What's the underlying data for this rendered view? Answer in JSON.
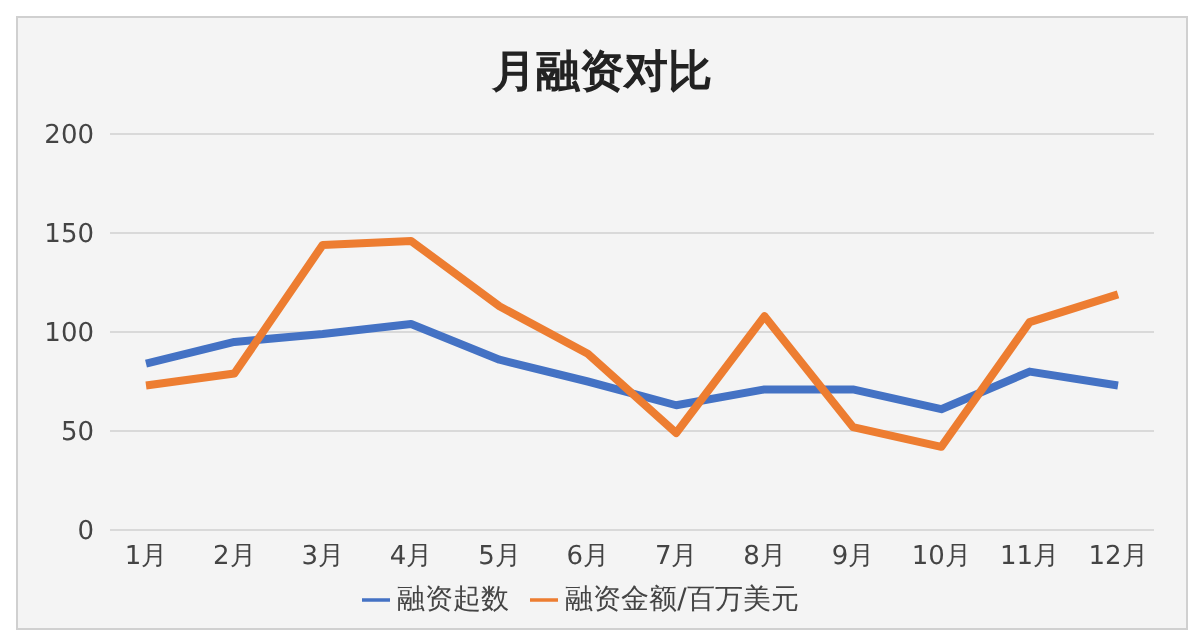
{
  "chart_data": {
    "type": "line",
    "title": "月融资对比",
    "categories": [
      "1月",
      "2月",
      "3月",
      "4月",
      "5月",
      "6月",
      "7月",
      "8月",
      "9月",
      "10月",
      "11月",
      "12月"
    ],
    "series": [
      {
        "name": "融资起数",
        "color": "#4472c4",
        "values": [
          84,
          95,
          99,
          104,
          86,
          75,
          63,
          71,
          71,
          61,
          80,
          73
        ]
      },
      {
        "name": "融资金额/百万美元",
        "color": "#ed7d31",
        "values": [
          73,
          79,
          144,
          146,
          113,
          89,
          49,
          108,
          52,
          42,
          105,
          119
        ]
      }
    ],
    "ylim": [
      0,
      200
    ],
    "yticks": [
      0,
      50,
      100,
      150,
      200
    ],
    "grid": "y",
    "legend": "bottom",
    "marker": "none",
    "line_style": "solid"
  }
}
